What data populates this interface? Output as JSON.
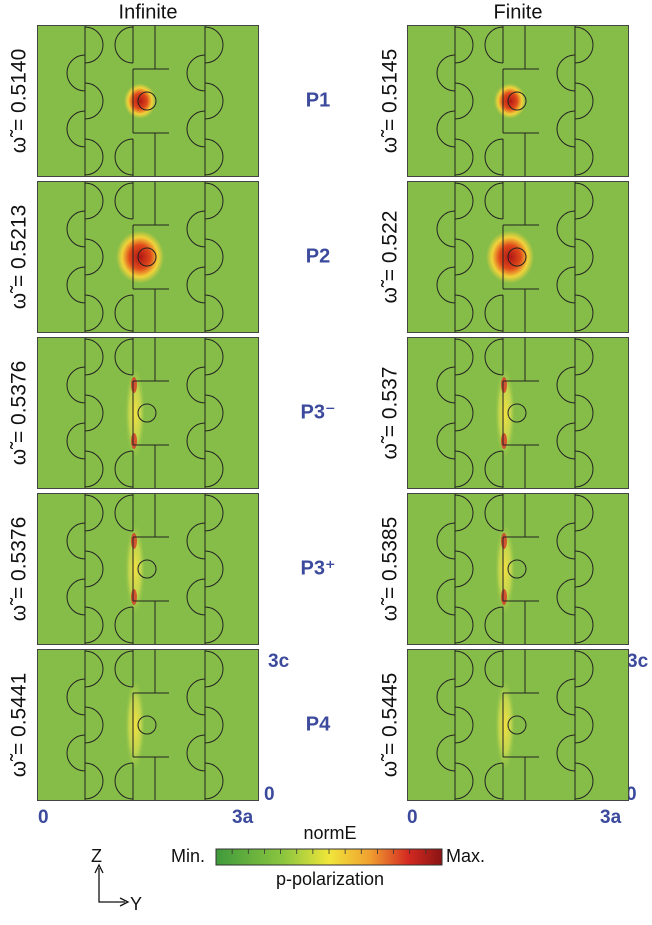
{
  "headers": [
    "Infinite",
    "Finite"
  ],
  "rows": [
    {
      "mode": "P1",
      "infinite": "ω̃ = 0.5140",
      "finite": "ω̃ = 0.5145"
    },
    {
      "mode": "P2",
      "infinite": "ω̃ = 0.5213",
      "finite": "ω̃ = 0.522"
    },
    {
      "mode": "P3⁻",
      "infinite": "ω̃ = 0.5376",
      "finite": "ω̃ = 0.537"
    },
    {
      "mode": "P3⁺",
      "infinite": "ω̃ = 0.5376",
      "finite": "ω̃ = 0.5385"
    },
    {
      "mode": "P4",
      "infinite": "ω̃ = 0.5441",
      "finite": "ω̃ = 0.5445"
    }
  ],
  "axis_labels": {
    "z_top": "3c",
    "z_bottom": "0",
    "y_start": "0",
    "y_end": "3a"
  },
  "colorbar": {
    "title": "normE",
    "min": "Min.",
    "max": "Max.",
    "caption": "p-polarization"
  },
  "axes": {
    "vertical": "Z",
    "horizontal": "Y"
  }
}
